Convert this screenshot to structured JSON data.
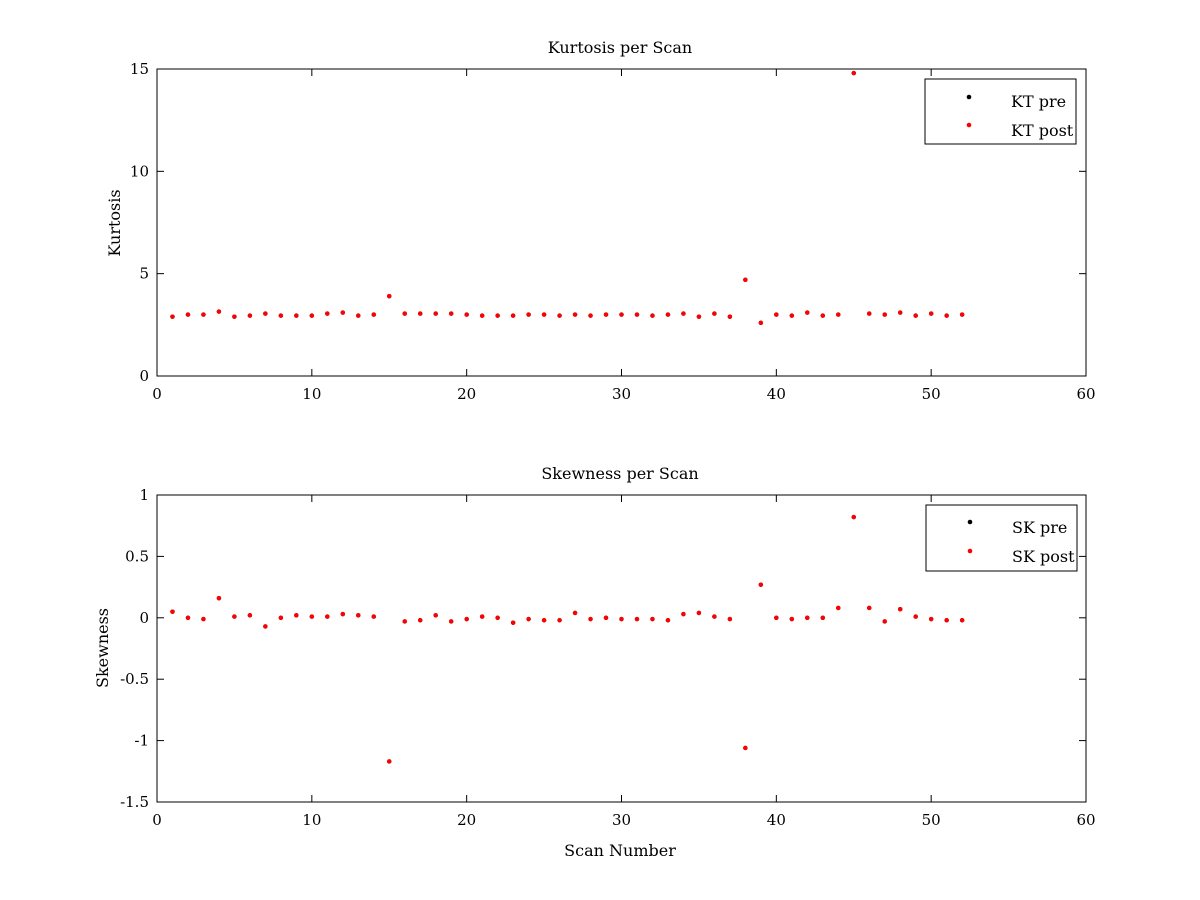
{
  "chart_data": [
    {
      "type": "scatter",
      "title": "Kurtosis per Scan",
      "xlabel": "",
      "ylabel": "Kurtosis",
      "xlim": [
        0,
        60
      ],
      "ylim": [
        0,
        15
      ],
      "xticks": [
        0,
        10,
        20,
        30,
        40,
        50,
        60
      ],
      "yticks": [
        0,
        5,
        10,
        15
      ],
      "grid": false,
      "legend_position": "top-right",
      "series": [
        {
          "name": "KT pre",
          "color": "#000000",
          "x": [
            1,
            2,
            3,
            4,
            5,
            6,
            7,
            8,
            9,
            10,
            11,
            12,
            13,
            14,
            15,
            16,
            17,
            18,
            19,
            20,
            21,
            22,
            23,
            24,
            25,
            26,
            27,
            28,
            29,
            30,
            31,
            32,
            33,
            34,
            35,
            36,
            37,
            38,
            39,
            40,
            41,
            42,
            43,
            44,
            45,
            46,
            47,
            48,
            49,
            50,
            51,
            52
          ],
          "y": [
            2.9,
            3.0,
            3.0,
            3.15,
            2.9,
            2.95,
            3.05,
            2.95,
            2.95,
            2.95,
            3.05,
            3.1,
            2.95,
            3.0,
            3.9,
            3.05,
            3.05,
            3.05,
            3.05,
            3.0,
            2.95,
            2.95,
            2.95,
            3.0,
            3.0,
            2.95,
            3.0,
            2.95,
            3.0,
            3.0,
            3.0,
            2.95,
            3.0,
            3.05,
            2.9,
            3.05,
            2.9,
            4.7,
            2.6,
            3.0,
            2.95,
            3.1,
            2.95,
            3.0,
            14.8,
            3.05,
            3.0,
            3.1,
            2.95,
            3.05,
            2.95,
            3.0
          ]
        },
        {
          "name": "KT post",
          "color": "#ff0000",
          "x": [
            1,
            2,
            3,
            4,
            5,
            6,
            7,
            8,
            9,
            10,
            11,
            12,
            13,
            14,
            15,
            16,
            17,
            18,
            19,
            20,
            21,
            22,
            23,
            24,
            25,
            26,
            27,
            28,
            29,
            30,
            31,
            32,
            33,
            34,
            35,
            36,
            37,
            38,
            39,
            40,
            41,
            42,
            43,
            44,
            45,
            46,
            47,
            48,
            49,
            50,
            51,
            52
          ],
          "y": [
            2.9,
            3.0,
            3.0,
            3.15,
            2.9,
            2.95,
            3.05,
            2.95,
            2.95,
            2.95,
            3.05,
            3.1,
            2.95,
            3.0,
            3.9,
            3.05,
            3.05,
            3.05,
            3.05,
            3.0,
            2.95,
            2.95,
            2.95,
            3.0,
            3.0,
            2.95,
            3.0,
            2.95,
            3.0,
            3.0,
            3.0,
            2.95,
            3.0,
            3.05,
            2.9,
            3.05,
            2.9,
            4.7,
            2.6,
            3.0,
            2.95,
            3.1,
            2.95,
            3.0,
            14.8,
            3.05,
            3.0,
            3.1,
            2.95,
            3.05,
            2.95,
            3.0
          ]
        }
      ]
    },
    {
      "type": "scatter",
      "title": "Skewness per Scan",
      "xlabel": "Scan Number",
      "ylabel": "Skewness",
      "xlim": [
        0,
        60
      ],
      "ylim": [
        -1.5,
        1
      ],
      "xticks": [
        0,
        10,
        20,
        30,
        40,
        50,
        60
      ],
      "yticks": [
        -1.5,
        -1,
        -0.5,
        0,
        0.5,
        1
      ],
      "grid": false,
      "legend_position": "top-right",
      "series": [
        {
          "name": "SK pre",
          "color": "#000000",
          "x": [
            1,
            2,
            3,
            4,
            5,
            6,
            7,
            8,
            9,
            10,
            11,
            12,
            13,
            14,
            15,
            16,
            17,
            18,
            19,
            20,
            21,
            22,
            23,
            24,
            25,
            26,
            27,
            28,
            29,
            30,
            31,
            32,
            33,
            34,
            35,
            36,
            37,
            38,
            39,
            40,
            41,
            42,
            43,
            44,
            45,
            46,
            47,
            48,
            49,
            50,
            51,
            52
          ],
          "y": [
            0.05,
            0.0,
            -0.01,
            0.16,
            0.01,
            0.02,
            -0.07,
            0.0,
            0.02,
            0.01,
            0.01,
            0.03,
            0.02,
            0.01,
            -1.17,
            -0.03,
            -0.02,
            0.02,
            -0.03,
            -0.01,
            0.01,
            0.0,
            -0.04,
            -0.01,
            -0.02,
            -0.02,
            0.04,
            -0.01,
            0.0,
            -0.01,
            -0.01,
            -0.01,
            -0.02,
            0.03,
            0.04,
            0.01,
            -0.01,
            -1.06,
            0.27,
            0.0,
            -0.01,
            0.0,
            0.0,
            0.08,
            0.82,
            0.08,
            -0.03,
            0.07,
            0.01,
            -0.01,
            -0.02,
            -0.02
          ]
        },
        {
          "name": "SK post",
          "color": "#ff0000",
          "x": [
            1,
            2,
            3,
            4,
            5,
            6,
            7,
            8,
            9,
            10,
            11,
            12,
            13,
            14,
            15,
            16,
            17,
            18,
            19,
            20,
            21,
            22,
            23,
            24,
            25,
            26,
            27,
            28,
            29,
            30,
            31,
            32,
            33,
            34,
            35,
            36,
            37,
            38,
            39,
            40,
            41,
            42,
            43,
            44,
            45,
            46,
            47,
            48,
            49,
            50,
            51,
            52
          ],
          "y": [
            0.05,
            0.0,
            -0.01,
            0.16,
            0.01,
            0.02,
            -0.07,
            0.0,
            0.02,
            0.01,
            0.01,
            0.03,
            0.02,
            0.01,
            -1.17,
            -0.03,
            -0.02,
            0.02,
            -0.03,
            -0.01,
            0.01,
            0.0,
            -0.04,
            -0.01,
            -0.02,
            -0.02,
            0.04,
            -0.01,
            0.0,
            -0.01,
            -0.01,
            -0.01,
            -0.02,
            0.03,
            0.04,
            0.01,
            -0.01,
            -1.06,
            0.27,
            0.0,
            -0.01,
            0.0,
            0.0,
            0.08,
            0.82,
            0.08,
            -0.03,
            0.07,
            0.01,
            -0.01,
            -0.02,
            -0.02
          ]
        }
      ]
    }
  ]
}
